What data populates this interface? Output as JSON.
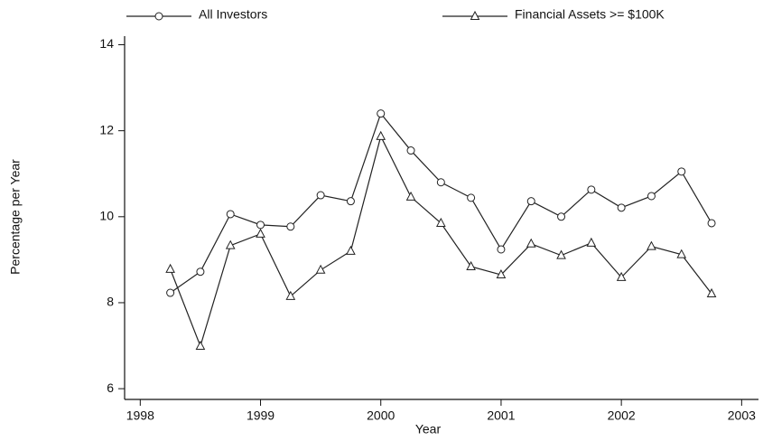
{
  "chart_data": {
    "type": "line",
    "xlabel": "Year",
    "ylabel": "Percentage per Year",
    "x": [
      1998.25,
      1998.5,
      1998.75,
      1999,
      1999.25,
      1999.5,
      1999.75,
      2000,
      2000.25,
      2000.5,
      2000.75,
      2001,
      2001.25,
      2001.5,
      2001.75,
      2002,
      2002.25,
      2002.5,
      2002.75
    ],
    "series": [
      {
        "name": "All Investors",
        "color": "#222222",
        "marker": "circle",
        "values": [
          8.23,
          8.72,
          10.06,
          9.81,
          9.77,
          10.5,
          10.36,
          12.4,
          11.54,
          10.8,
          10.44,
          9.24,
          10.36,
          10.0,
          10.63,
          10.21,
          10.48,
          11.05,
          9.85
        ]
      },
      {
        "name": "Financial Assets >= $100K",
        "color": "#222222",
        "marker": "triangle",
        "values": [
          8.78,
          6.99,
          9.33,
          9.6,
          8.15,
          8.76,
          9.2,
          11.87,
          10.46,
          9.85,
          8.84,
          8.65,
          9.37,
          9.1,
          9.39,
          8.59,
          9.31,
          9.12,
          8.21
        ]
      }
    ],
    "xlim": [
      1997.87,
      2003.14
    ],
    "xticks": [
      1998,
      1999,
      2000,
      2001,
      2002,
      2003
    ],
    "ylim": [
      5.75,
      14.2
    ],
    "yticks": [
      6,
      8,
      10,
      12,
      14
    ]
  }
}
